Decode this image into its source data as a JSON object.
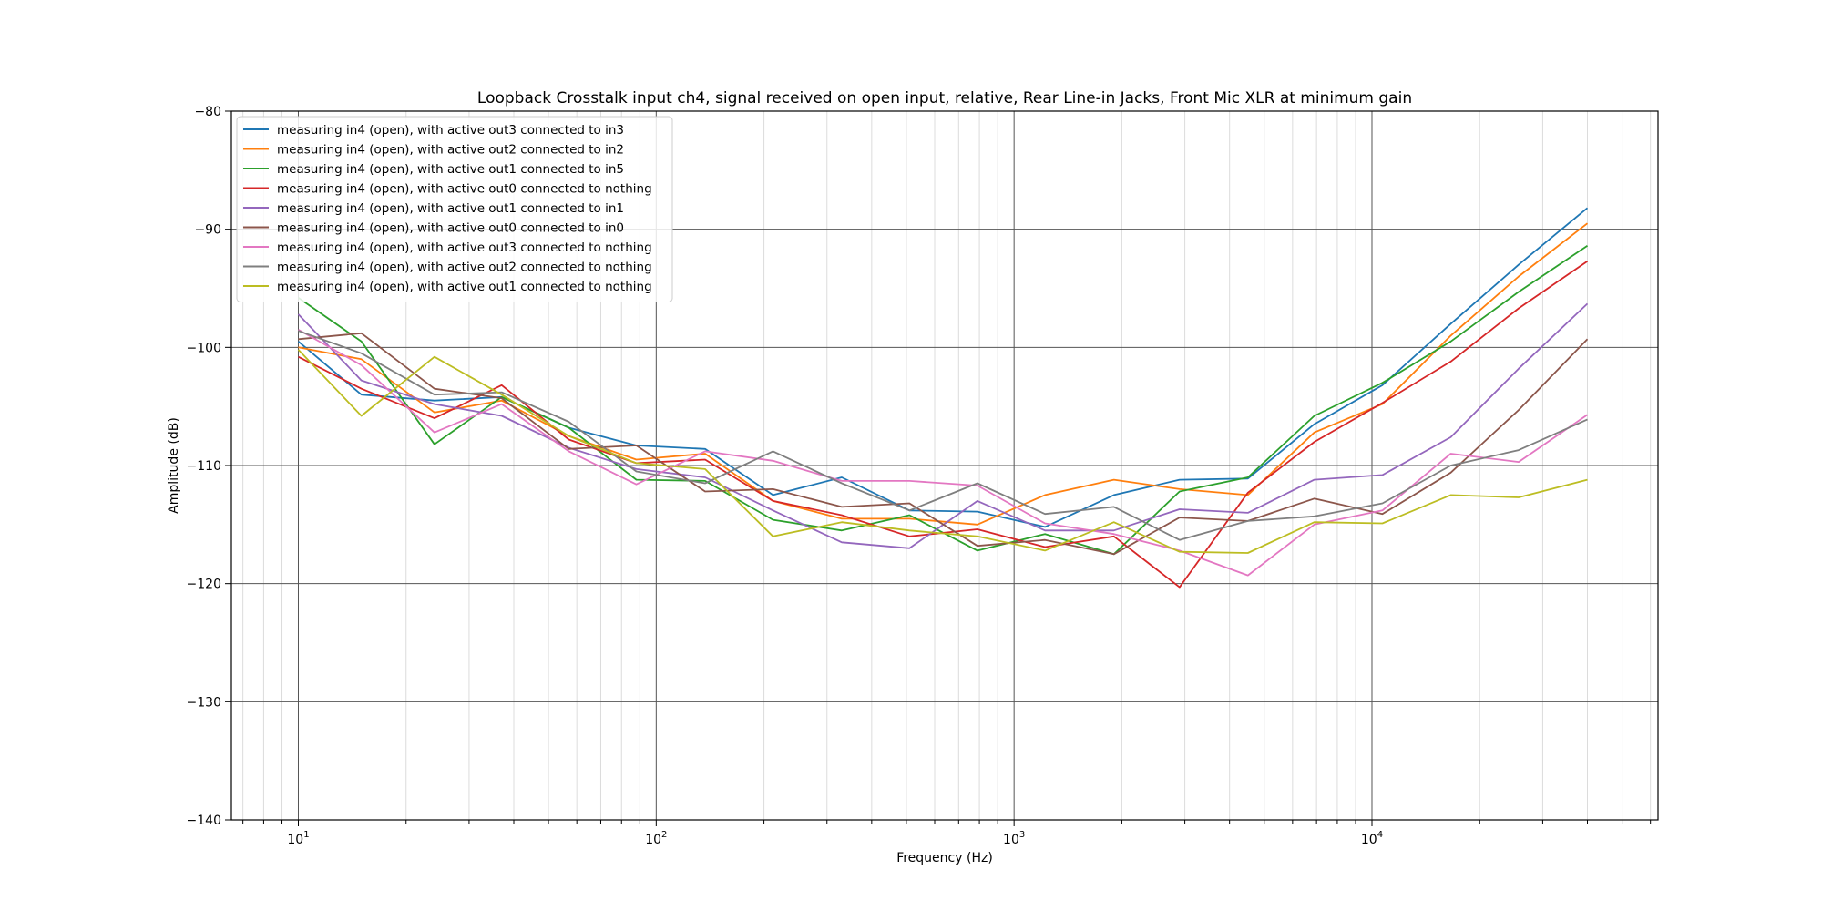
{
  "chart_data": {
    "type": "line",
    "title": "Loopback Crosstalk input ch4, signal received on open input, relative, Rear Line-in Jacks, Front Mic XLR at minimum gain",
    "xlabel": "Frequency (Hz)",
    "ylabel": "Amplitude (dB)",
    "xscale": "log",
    "xlim": [
      6.5,
      63000
    ],
    "ylim": [
      -140,
      -80
    ],
    "x_major_ticks": [
      {
        "value": 10,
        "base": "10",
        "exp": "1"
      },
      {
        "value": 100,
        "base": "10",
        "exp": "2"
      },
      {
        "value": 1000,
        "base": "10",
        "exp": "3"
      },
      {
        "value": 10000,
        "base": "10",
        "exp": "4"
      }
    ],
    "y_ticks": [
      -140,
      -130,
      -120,
      -110,
      -100,
      -90,
      -80
    ],
    "y_tick_labels": [
      "−140",
      "−130",
      "−120",
      "−110",
      "−100",
      "−90",
      "−80"
    ],
    "grid": true,
    "legend_position": "top-left",
    "x": [
      10,
      15,
      24,
      37,
      57,
      88,
      137,
      212,
      330,
      510,
      790,
      1220,
      1900,
      2900,
      4500,
      6900,
      10700,
      16600,
      25700,
      40000
    ],
    "series": [
      {
        "name": "measuring in4 (open), with active out3 connected to in3",
        "color": "#1f77b4",
        "values": [
          -99.5,
          -104.0,
          -104.5,
          -104.2,
          -106.8,
          -108.3,
          -108.6,
          -112.5,
          -111.0,
          -113.8,
          -113.9,
          -115.2,
          -112.5,
          -111.2,
          -111.1,
          -106.5,
          -103.2,
          -98.0,
          -93.0,
          -88.2
        ]
      },
      {
        "name": "measuring in4 (open), with active out2 connected to in2",
        "color": "#ff7f0e",
        "values": [
          -100.0,
          -101.0,
          -105.5,
          -104.5,
          -107.5,
          -109.5,
          -109.0,
          -113.0,
          -114.5,
          -114.5,
          -115.0,
          -112.5,
          -111.2,
          -112.0,
          -112.5,
          -107.2,
          -104.8,
          -99.0,
          -94.0,
          -89.5
        ]
      },
      {
        "name": "measuring in4 (open), with active out1 connected to in5",
        "color": "#2ca02c",
        "values": [
          -95.8,
          -99.5,
          -108.2,
          -104.2,
          -106.8,
          -111.2,
          -111.3,
          -114.6,
          -115.5,
          -114.2,
          -117.2,
          -115.8,
          -117.5,
          -112.2,
          -111.0,
          -105.8,
          -103.0,
          -99.5,
          -95.3,
          -91.4
        ]
      },
      {
        "name": "measuring in4 (open), with active out0 connected to nothing",
        "color": "#d62728",
        "values": [
          -100.8,
          -103.5,
          -106.0,
          -103.2,
          -107.8,
          -109.8,
          -109.5,
          -113.0,
          -114.2,
          -116.0,
          -115.4,
          -116.9,
          -116.0,
          -120.3,
          -112.3,
          -108.0,
          -104.7,
          -101.2,
          -96.7,
          -92.7
        ]
      },
      {
        "name": "measuring in4 (open), with active out1 connected to in1",
        "color": "#9467bd",
        "values": [
          -97.2,
          -102.8,
          -104.8,
          -105.8,
          -108.5,
          -110.3,
          -111.0,
          -113.8,
          -116.5,
          -117.0,
          -113.0,
          -115.5,
          -115.5,
          -113.7,
          -114.0,
          -111.2,
          -110.8,
          -107.6,
          -101.8,
          -96.3
        ]
      },
      {
        "name": "measuring in4 (open), with active out0 connected to in0",
        "color": "#8c564b",
        "values": [
          -99.3,
          -98.8,
          -103.5,
          -104.3,
          -108.6,
          -108.3,
          -112.2,
          -112.0,
          -113.5,
          -113.2,
          -116.8,
          -116.3,
          -117.5,
          -114.4,
          -114.7,
          -112.8,
          -114.1,
          -110.6,
          -105.3,
          -99.3
        ]
      },
      {
        "name": "measuring in4 (open), with active out3 connected to nothing",
        "color": "#e377c2",
        "values": [
          -98.5,
          -101.5,
          -107.2,
          -104.8,
          -108.8,
          -111.6,
          -108.8,
          -109.6,
          -111.3,
          -111.3,
          -111.7,
          -114.9,
          -115.8,
          -117.2,
          -119.3,
          -115.0,
          -113.8,
          -109.0,
          -109.7,
          -105.7
        ]
      },
      {
        "name": "measuring in4 (open), with active out2 connected to nothing",
        "color": "#7f7f7f",
        "values": [
          -98.6,
          -100.5,
          -104.0,
          -103.8,
          -106.3,
          -110.5,
          -111.5,
          -108.8,
          -111.5,
          -113.8,
          -111.5,
          -114.1,
          -113.5,
          -116.3,
          -114.7,
          -114.3,
          -113.2,
          -110.0,
          -108.7,
          -106.1
        ]
      },
      {
        "name": "measuring in4 (open), with active out1 connected to nothing",
        "color": "#bcbd22",
        "values": [
          -100.2,
          -105.8,
          -100.8,
          -104.0,
          -107.5,
          -109.8,
          -110.3,
          -116.0,
          -114.8,
          -115.5,
          -116.0,
          -117.2,
          -114.8,
          -117.3,
          -117.4,
          -114.8,
          -114.9,
          -112.5,
          -112.7,
          -111.2
        ]
      }
    ]
  }
}
